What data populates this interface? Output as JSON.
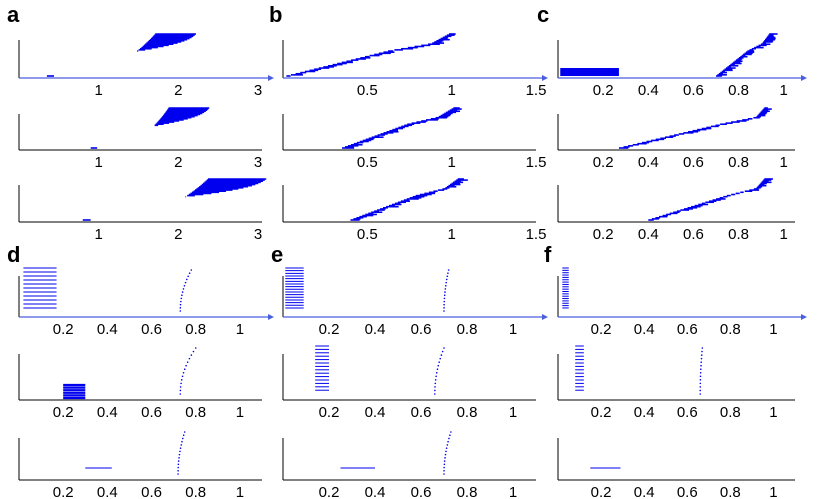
{
  "colors": {
    "series": "#0000ee",
    "axis": "#000000",
    "arrow": "#4a5fe0"
  },
  "chart_data": [
    {
      "panel": "a",
      "type": "line",
      "subplots": 3,
      "xlim": [
        0,
        3.05
      ],
      "xticks": [
        1,
        2,
        3
      ],
      "xtick_labels": [
        "1",
        "2",
        "3"
      ],
      "series": [
        {
          "x_start": 0.35,
          "x_mid": 1.45,
          "x_end": 1.95,
          "spread": 0.35
        },
        {
          "x_start": 0.9,
          "x_mid": 1.7,
          "x_end": 2.05,
          "spread": 0.4
        },
        {
          "x_start": 0.8,
          "x_mid": 2.1,
          "x_end": 2.65,
          "spread": 0.55
        }
      ]
    },
    {
      "panel": "b",
      "type": "line",
      "subplots": 3,
      "xlim": [
        0,
        1.5
      ],
      "xticks": [
        0.5,
        1,
        1.5
      ],
      "xtick_labels": [
        "0.5",
        "1",
        "1.5"
      ],
      "series": [
        {
          "x_start": 0.02,
          "x_mid": 0.8,
          "x_end": 1.03,
          "spread": 0.05
        },
        {
          "x_start": 0.35,
          "x_mid": 0.85,
          "x_end": 1.05,
          "spread": 0.05
        },
        {
          "x_start": 0.4,
          "x_mid": 0.9,
          "x_end": 1.07,
          "spread": 0.05
        }
      ]
    },
    {
      "panel": "c",
      "type": "line",
      "subplots": 3,
      "xlim": [
        0,
        1.05
      ],
      "xticks": [
        0.2,
        0.4,
        0.6,
        0.8,
        1
      ],
      "xtick_labels": [
        "0.2",
        "0.4",
        "0.6",
        "0.8",
        "1"
      ],
      "series": [
        {
          "x_start": 0.7,
          "x_mid": 0.88,
          "x_end": 0.95,
          "spread": 0.03,
          "block": [
            0.01,
            0.27
          ]
        },
        {
          "x_start": 0.27,
          "x_mid": 0.85,
          "x_end": 0.93,
          "spread": 0.03
        },
        {
          "x_start": 0.4,
          "x_mid": 0.85,
          "x_end": 0.93,
          "spread": 0.03
        }
      ]
    },
    {
      "panel": "d",
      "type": "scatter",
      "subplots": 3,
      "xlim": [
        0,
        1.1
      ],
      "xticks": [
        0.2,
        0.4,
        0.6,
        0.8,
        1
      ],
      "xtick_labels": [
        "0.2",
        "0.4",
        "0.6",
        "0.8",
        "1"
      ],
      "series": [
        {
          "block": [
            0.02,
            0.17
          ],
          "rows": 11,
          "cluster": [
            0.73,
            0.78
          ]
        },
        {
          "block": [
            0.2,
            0.3
          ],
          "rows": 6,
          "filled": true,
          "cluster": [
            0.73,
            0.8
          ]
        },
        {
          "dash": [
            0.3,
            0.42
          ],
          "cluster": [
            0.72,
            0.75
          ]
        }
      ]
    },
    {
      "panel": "e",
      "type": "scatter",
      "subplots": 3,
      "xlim": [
        0,
        1.1
      ],
      "xticks": [
        0.2,
        0.4,
        0.6,
        0.8,
        1
      ],
      "xtick_labels": [
        "0.2",
        "0.4",
        "0.6",
        "0.8",
        "1"
      ],
      "series": [
        {
          "block": [
            0.01,
            0.09
          ],
          "rows": 16,
          "cluster": [
            0.7,
            0.72
          ]
        },
        {
          "block": [
            0.14,
            0.2
          ],
          "rows": 14,
          "cluster": [
            0.66,
            0.7
          ]
        },
        {
          "dash": [
            0.25,
            0.4
          ],
          "cluster": [
            0.7,
            0.73
          ]
        }
      ]
    },
    {
      "panel": "f",
      "type": "scatter",
      "subplots": 3,
      "xlim": [
        0,
        1.1
      ],
      "xticks": [
        0.2,
        0.4,
        0.6,
        0.8,
        1
      ],
      "xtick_labels": [
        "0.2",
        "0.4",
        "0.6",
        "0.8",
        "1"
      ],
      "series": [
        {
          "block": [
            0.02,
            0.05
          ],
          "rows": 18
        },
        {
          "block": [
            0.08,
            0.12
          ],
          "rows": 14,
          "cluster": [
            0.66,
            0.67
          ]
        },
        {
          "dash": [
            0.15,
            0.29
          ]
        }
      ]
    }
  ]
}
